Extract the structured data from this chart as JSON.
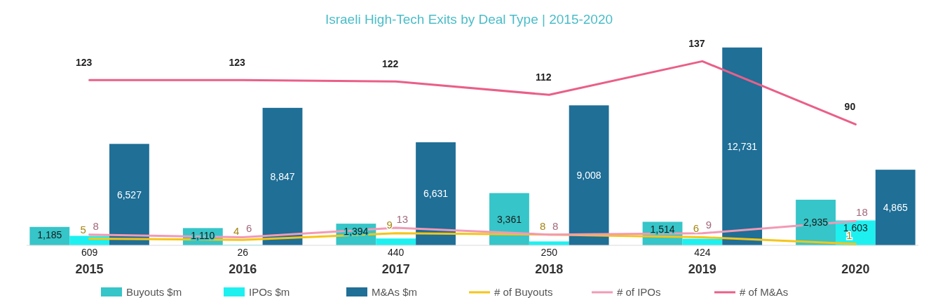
{
  "chart_data": {
    "type": "bar",
    "title": "Israeli High-Tech Exits by Deal Type | 2015-2020",
    "categories": [
      "2015",
      "2016",
      "2017",
      "2018",
      "2019",
      "2020"
    ],
    "series": [
      {
        "name": "Buyouts $m",
        "color": "#36c5c8",
        "values": [
          1185,
          1110,
          1394,
          3361,
          1514,
          2935
        ],
        "value_labels": [
          "1,185",
          "1,110",
          "1,394",
          "3,361",
          "1,514",
          "2,935"
        ]
      },
      {
        "name": "IPOs $m",
        "color": "#1ef0f0",
        "values": [
          609,
          26,
          440,
          250,
          424,
          1603
        ],
        "value_labels": [
          "609",
          "26",
          "440",
          "250",
          "424",
          "1,603"
        ]
      },
      {
        "name": "M&As $m",
        "color": "#1f6f97",
        "values": [
          6527,
          8847,
          6631,
          9008,
          12731,
          4865
        ],
        "value_labels": [
          "6,527",
          "8,847",
          "6,631",
          "9,008",
          "12,731",
          "4,865"
        ]
      },
      {
        "name": "# of Buyouts",
        "type": "line",
        "axis": "y2",
        "color": "#f5c518",
        "values": [
          5,
          4,
          9,
          8,
          6,
          1
        ],
        "value_labels": [
          "5",
          "4",
          "9",
          "8",
          "6",
          "1"
        ]
      },
      {
        "name": "# of IPOs",
        "type": "line",
        "axis": "y2",
        "color": "#f29ab5",
        "values": [
          8,
          6,
          13,
          8,
          9,
          18
        ],
        "value_labels": [
          "8",
          "6",
          "13",
          "8",
          "9",
          "18"
        ]
      },
      {
        "name": "# of M&As",
        "type": "line",
        "axis": "y2",
        "color": "#ea5f88",
        "values": [
          123,
          123,
          122,
          112,
          137,
          90
        ],
        "value_labels": [
          "123",
          "123",
          "122",
          "112",
          "137",
          "90"
        ]
      }
    ],
    "tick_labels": "x",
    "legend": "bottom"
  }
}
